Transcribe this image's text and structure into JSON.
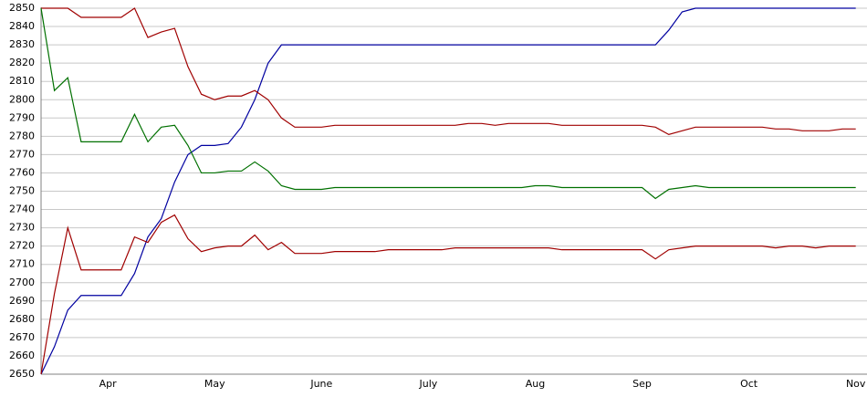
{
  "chart_data": {
    "type": "line",
    "categories": [
      null,
      null,
      null,
      null,
      null,
      "Apr",
      null,
      null,
      null,
      null,
      null,
      null,
      null,
      "May",
      null,
      null,
      null,
      null,
      null,
      null,
      null,
      "June",
      null,
      null,
      null,
      null,
      null,
      null,
      null,
      "July",
      null,
      null,
      null,
      null,
      null,
      null,
      null,
      "Aug",
      null,
      null,
      null,
      null,
      null,
      null,
      null,
      "Sep",
      null,
      null,
      null,
      null,
      null,
      null,
      null,
      "Oct",
      null,
      null,
      null,
      null,
      null,
      null,
      null,
      "Nov"
    ],
    "series": [
      {
        "color": "#0000a0",
        "values": [
          2650,
          2665,
          2685,
          2693,
          2693,
          2693,
          2693,
          2705,
          2725,
          2735,
          2755,
          2770,
          2775,
          2775,
          2776,
          2785,
          2800,
          2820,
          2830,
          2830,
          2830,
          2830,
          2830,
          2830,
          2830,
          2830,
          2830,
          2830,
          2830,
          2830,
          2830,
          2830,
          2830,
          2830,
          2830,
          2830,
          2830,
          2830,
          2830,
          2830,
          2830,
          2830,
          2830,
          2830,
          2830,
          2830,
          2830,
          2838,
          2848,
          2850,
          2850,
          2850,
          2850,
          2850,
          2850,
          2850,
          2850,
          2850,
          2850,
          2850,
          2850,
          2850
        ]
      },
      {
        "color": "#a00000",
        "values": [
          2850,
          2850,
          2850,
          2845,
          2845,
          2845,
          2845,
          2850,
          2834,
          2837,
          2839,
          2818,
          2803,
          2800,
          2802,
          2802,
          2805,
          2800,
          2790,
          2785,
          2785,
          2785,
          2786,
          2786,
          2786,
          2786,
          2786,
          2786,
          2786,
          2786,
          2786,
          2786,
          2787,
          2787,
          2786,
          2787,
          2787,
          2787,
          2787,
          2786,
          2786,
          2786,
          2786,
          2786,
          2786,
          2786,
          2785,
          2781,
          2783,
          2785,
          2785,
          2785,
          2785,
          2785,
          2785,
          2784,
          2784,
          2783,
          2783,
          2783,
          2784,
          2784
        ]
      },
      {
        "color": "#007000",
        "values": [
          2850,
          2805,
          2812,
          2777,
          2777,
          2777,
          2777,
          2792,
          2777,
          2785,
          2786,
          2775,
          2760,
          2760,
          2761,
          2761,
          2766,
          2761,
          2753,
          2751,
          2751,
          2751,
          2752,
          2752,
          2752,
          2752,
          2752,
          2752,
          2752,
          2752,
          2752,
          2752,
          2752,
          2752,
          2752,
          2752,
          2752,
          2753,
          2753,
          2752,
          2752,
          2752,
          2752,
          2752,
          2752,
          2752,
          2746,
          2751,
          2752,
          2753,
          2752,
          2752,
          2752,
          2752,
          2752,
          2752,
          2752,
          2752,
          2752,
          2752,
          2752,
          2752
        ]
      },
      {
        "color": "#a00000",
        "values": [
          2650,
          2694,
          2730,
          2707,
          2707,
          2707,
          2707,
          2725,
          2722,
          2733,
          2737,
          2724,
          2717,
          2719,
          2720,
          2720,
          2726,
          2718,
          2722,
          2716,
          2716,
          2716,
          2717,
          2717,
          2717,
          2717,
          2718,
          2718,
          2718,
          2718,
          2718,
          2719,
          2719,
          2719,
          2719,
          2719,
          2719,
          2719,
          2719,
          2718,
          2718,
          2718,
          2718,
          2718,
          2718,
          2718,
          2713,
          2718,
          2719,
          2720,
          2720,
          2720,
          2720,
          2720,
          2720,
          2719,
          2720,
          2720,
          2719,
          2720,
          2720,
          2720
        ]
      }
    ],
    "ylim": [
      2650,
      2850
    ],
    "yticks": [
      2650,
      2660,
      2670,
      2680,
      2690,
      2700,
      2710,
      2720,
      2730,
      2740,
      2750,
      2760,
      2770,
      2780,
      2790,
      2800,
      2810,
      2820,
      2830,
      2840,
      2850
    ],
    "grid": true
  }
}
